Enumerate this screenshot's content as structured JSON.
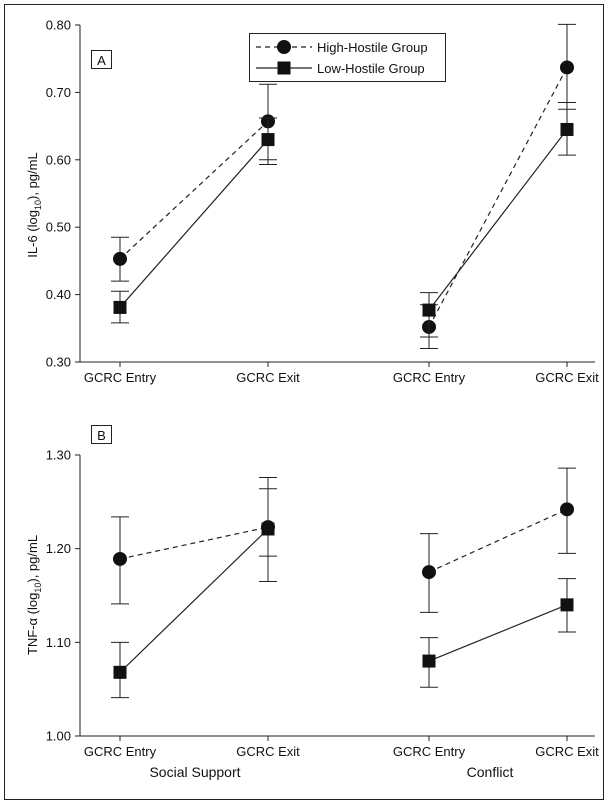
{
  "legend": {
    "entries": [
      {
        "label": "High-Hostile Group",
        "style": "dashed",
        "marker": "circle"
      },
      {
        "label": "Low-Hostile Group",
        "style": "solid",
        "marker": "square"
      }
    ]
  },
  "chart_data": [
    {
      "type": "line",
      "panel_label": "A",
      "ylabel_main": "IL-6 (log",
      "ylabel_sub": "10",
      "ylabel_tail": "), pg/mL",
      "ylim": [
        0.3,
        0.8
      ],
      "yticks": [
        0.3,
        0.4,
        0.5,
        0.6,
        0.7,
        0.8
      ],
      "ytick_labels": [
        "0.30",
        "0.40",
        "0.50",
        "0.60",
        "0.70",
        "0.80"
      ],
      "xtick_labels": [
        "GCRC Entry",
        "GCRC Exit",
        "GCRC Entry",
        "GCRC Exit"
      ],
      "group_labels": [],
      "grid": false,
      "series": [
        {
          "name": "High-Hostile Group",
          "marker": "circle",
          "line": "dashed",
          "groups": [
            {
              "y": [
                0.453,
                0.657
              ],
              "err_low": [
                0.42,
                0.6
              ],
              "err_high": [
                0.485,
                0.712
              ]
            },
            {
              "y": [
                0.352,
                0.737
              ],
              "err_low": [
                0.32,
                0.675
              ],
              "err_high": [
                0.385,
                0.801
              ]
            }
          ]
        },
        {
          "name": "Low-Hostile Group",
          "marker": "square",
          "line": "solid",
          "groups": [
            {
              "y": [
                0.381,
                0.63
              ],
              "err_low": [
                0.358,
                0.593
              ],
              "err_high": [
                0.405,
                0.662
              ]
            },
            {
              "y": [
                0.377,
                0.645
              ],
              "err_low": [
                0.337,
                0.607
              ],
              "err_high": [
                0.403,
                0.685
              ]
            }
          ]
        }
      ]
    },
    {
      "type": "line",
      "panel_label": "B",
      "ylabel_main": "TNF-α (log",
      "ylabel_sub": "10",
      "ylabel_tail": "), pg/mL",
      "ylim": [
        1.0,
        1.3
      ],
      "yticks": [
        1.0,
        1.1,
        1.2,
        1.3
      ],
      "ytick_labels": [
        "1.00",
        "1.10",
        "1.20",
        "1.30"
      ],
      "xtick_labels": [
        "GCRC Entry",
        "GCRC Exit",
        "GCRC Entry",
        "GCRC Exit"
      ],
      "group_labels": [
        "Social Support",
        "Conflict"
      ],
      "grid": false,
      "series": [
        {
          "name": "High-Hostile Group",
          "marker": "circle",
          "line": "dashed",
          "groups": [
            {
              "y": [
                1.189,
                1.223
              ],
              "err_low": [
                1.141,
                1.192
              ],
              "err_high": [
                1.234,
                1.276
              ]
            },
            {
              "y": [
                1.175,
                1.242
              ],
              "err_low": [
                1.132,
                1.195
              ],
              "err_high": [
                1.216,
                1.286
              ]
            }
          ]
        },
        {
          "name": "Low-Hostile Group",
          "marker": "square",
          "line": "solid",
          "groups": [
            {
              "y": [
                1.068,
                1.221
              ],
              "err_low": [
                1.041,
                1.165
              ],
              "err_high": [
                1.1,
                1.264
              ]
            },
            {
              "y": [
                1.08,
                1.14
              ],
              "err_low": [
                1.052,
                1.111
              ],
              "err_high": [
                1.105,
                1.168
              ]
            }
          ]
        }
      ]
    }
  ]
}
